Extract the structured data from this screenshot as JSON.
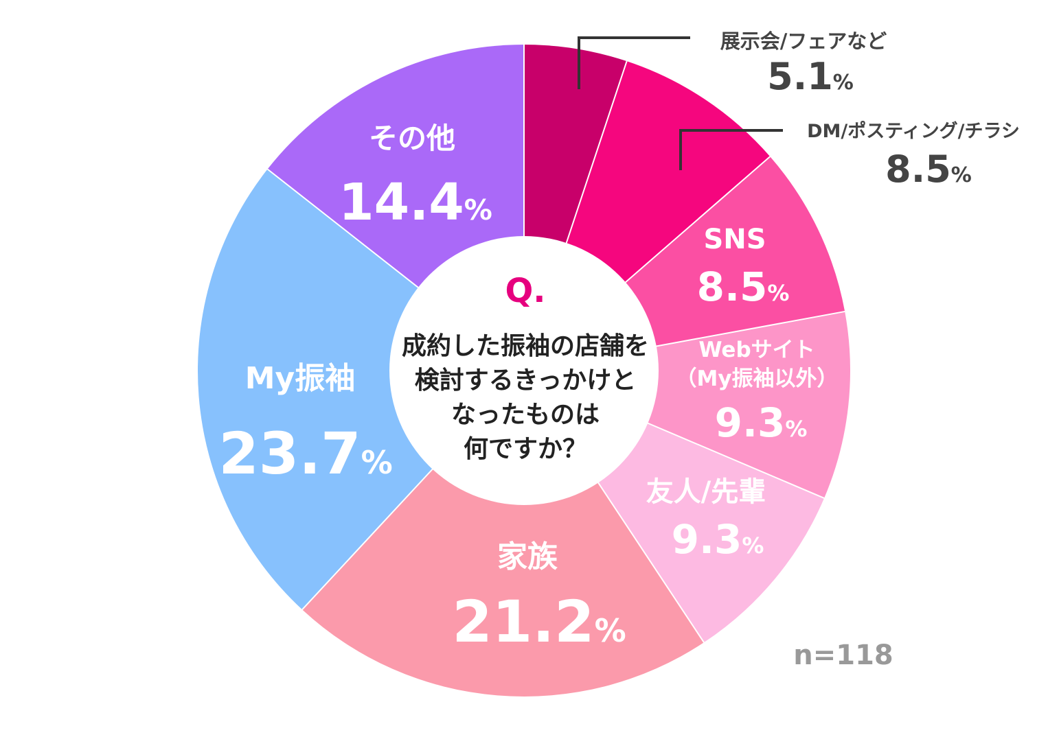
{
  "chart_data": {
    "type": "pie",
    "style": "donut",
    "question_mark": "Q.",
    "question_lines": [
      "成約した振袖の店舗を",
      "検討するきっかけと",
      "なったものは",
      "何ですか？"
    ],
    "sample_size": "n=118",
    "percent_symbol": "%",
    "slices": [
      {
        "label": "展示会/フェアなど",
        "value": 5.1,
        "value_text": "5.1",
        "color": "#c8006a"
      },
      {
        "label": "DM/ポスティング/チラシ",
        "value": 8.5,
        "value_text": "8.5",
        "color": "#f5067e"
      },
      {
        "label": "SNS",
        "value": 8.5,
        "value_text": "8.5",
        "color": "#fb4fa3"
      },
      {
        "label": "Webサイト（My振袖以外）",
        "label_lines": [
          "Webサイト",
          "（My振袖以外）"
        ],
        "value": 9.3,
        "value_text": "9.3",
        "color": "#fd95c8"
      },
      {
        "label": "友人/先輩",
        "value": 9.3,
        "value_text": "9.3",
        "color": "#fdbae2"
      },
      {
        "label": "家族",
        "value": 21.2,
        "value_text": "21.2",
        "color": "#fb9aab"
      },
      {
        "label": "My振袖",
        "value": 23.7,
        "value_text": "23.7",
        "color": "#87c1fd"
      },
      {
        "label": "その他",
        "value": 14.4,
        "value_text": "14.4",
        "color": "#aa69f8"
      }
    ]
  }
}
